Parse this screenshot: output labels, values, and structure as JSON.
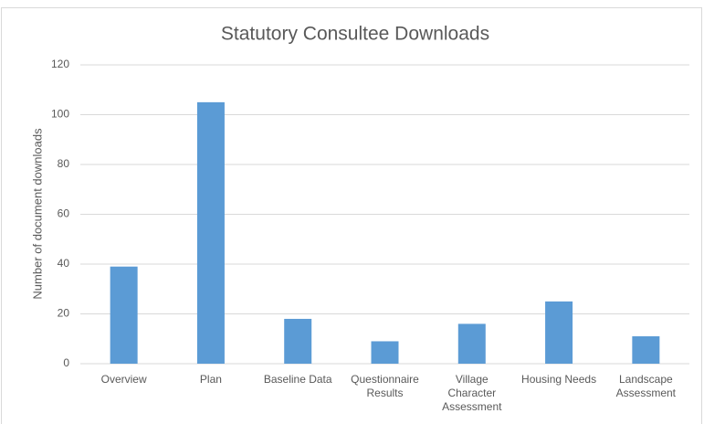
{
  "chart_data": {
    "type": "bar",
    "title": "Statutory Consultee Downloads",
    "y_label": "Number of document downloads",
    "categories": [
      "Overview",
      "Plan",
      "Baseline Data",
      "Questionnaire Results",
      "Village Character Assessment",
      "Housing Needs",
      "Landscape Assessment"
    ],
    "values": [
      39,
      105,
      18,
      9,
      16,
      25,
      11
    ],
    "color": "#5b9bd5",
    "ylim": [
      0,
      120
    ],
    "yticks": [
      0,
      20,
      40,
      60,
      80,
      100,
      120
    ],
    "grid": true
  }
}
